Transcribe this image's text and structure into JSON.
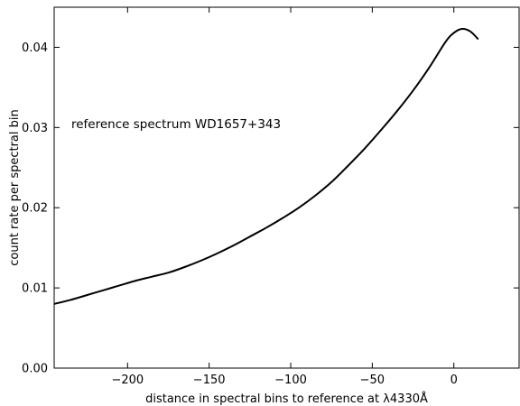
{
  "chart_data": {
    "type": "line",
    "title": "",
    "xlabel": "distance in spectral bins to reference at λ4330Å",
    "ylabel": "count rate per spectral bin",
    "xlim": [
      -245,
      40
    ],
    "ylim": [
      0.0,
      0.045
    ],
    "x_ticks": [
      -200,
      -150,
      -100,
      -50,
      0
    ],
    "x_tick_labels": [
      "−200",
      "−150",
      "−100",
      "−50",
      "0"
    ],
    "y_ticks": [
      0.0,
      0.01,
      0.02,
      0.03,
      0.04
    ],
    "y_tick_labels": [
      "0.00",
      "0.01",
      "0.02",
      "0.03",
      "0.04"
    ],
    "grid": false,
    "annotation": "reference spectrum WD1657+343",
    "series": [
      {
        "color": "#000000",
        "x": [
          -245,
          -235,
          -225,
          -215,
          -205,
          -195,
          -185,
          -175,
          -165,
          -155,
          -145,
          -135,
          -125,
          -115,
          -105,
          -95,
          -85,
          -75,
          -65,
          -55,
          -45,
          -35,
          -25,
          -15,
          -5,
          0,
          5,
          10,
          15
        ],
        "y": [
          0.008,
          0.0085,
          0.0091,
          0.0097,
          0.0103,
          0.0109,
          0.0114,
          0.0119,
          0.0126,
          0.0134,
          0.0143,
          0.0153,
          0.0164,
          0.0175,
          0.0187,
          0.02,
          0.0215,
          0.0232,
          0.0252,
          0.0273,
          0.0296,
          0.032,
          0.0346,
          0.0375,
          0.0407,
          0.0418,
          0.0423,
          0.042,
          0.041
        ]
      }
    ]
  }
}
